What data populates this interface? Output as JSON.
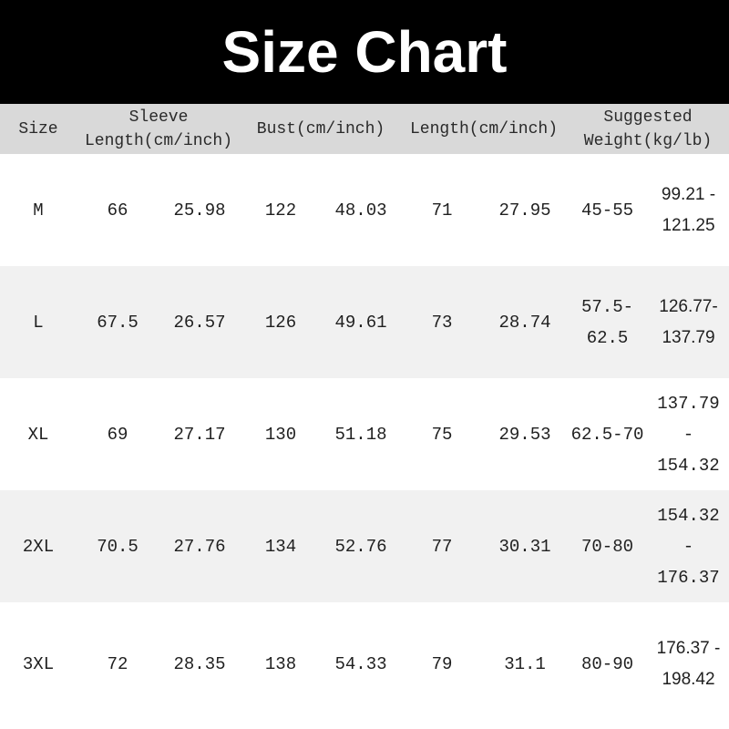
{
  "title": "Size Chart",
  "colors": {
    "banner_bg": "#000000",
    "banner_text": "#ffffff",
    "header_bg": "#d9d9d9",
    "shaded_row_bg": "#f1f1f1",
    "row_bg": "#ffffff",
    "text": "#1f1f1f"
  },
  "chart_data": {
    "type": "table",
    "title": "Size Chart",
    "columns": [
      "Size",
      "Sleeve Length (cm)",
      "Sleeve Length (inch)",
      "Bust (cm)",
      "Bust (inch)",
      "Length (cm)",
      "Length (inch)",
      "Suggested Weight (kg)",
      "Suggested Weight (lb)"
    ],
    "rows": [
      [
        "M",
        "66",
        "25.98",
        "122",
        "48.03",
        "71",
        "27.95",
        "45-55",
        "99.21 - 121.25"
      ],
      [
        "L",
        "67.5",
        "26.57",
        "126",
        "49.61",
        "73",
        "28.74",
        "57.5-62.5",
        "126.77-137.79"
      ],
      [
        "XL",
        "69",
        "27.17",
        "130",
        "51.18",
        "75",
        "29.53",
        "62.5-70",
        "137.79 - 154.32"
      ],
      [
        "2XL",
        "70.5",
        "27.76",
        "134",
        "52.76",
        "77",
        "30.31",
        "70-80",
        "154.32 - 176.37"
      ],
      [
        "3XL",
        "72",
        "28.35",
        "138",
        "54.33",
        "79",
        "31.1",
        "80-90",
        "176.37 - 198.42"
      ]
    ]
  },
  "table": {
    "header_groups": [
      {
        "id": "size",
        "span": 1,
        "label_lines": [
          "Size"
        ]
      },
      {
        "id": "sleeve-length",
        "span": 2,
        "label_lines": [
          "Sleeve",
          "Length(cm/inch)"
        ]
      },
      {
        "id": "bust",
        "span": 2,
        "label_lines": [
          "Bust(cm/inch)"
        ]
      },
      {
        "id": "length",
        "span": 2,
        "label_lines": [
          "Length(cm/inch)"
        ]
      },
      {
        "id": "suggested-weight",
        "span": 2,
        "label_lines": [
          "Suggested",
          "Weight(kg/lb)"
        ]
      }
    ],
    "columns": [
      "size",
      "sleeve-cm",
      "sleeve-inch",
      "bust-cm",
      "bust-inch",
      "length-cm",
      "length-inch",
      "weight-kg",
      "weight-lb"
    ],
    "rows": [
      [
        "M",
        "66",
        "25.98",
        "122",
        "48.03",
        "71",
        "27.95",
        "45-55",
        {
          "lines": [
            "99.21 -",
            "121.25"
          ],
          "alt_style": true
        }
      ],
      [
        "L",
        "67.5",
        "26.57",
        "126",
        "49.61",
        "73",
        "28.74",
        {
          "lines": [
            "57.5-",
            "62.5"
          ]
        },
        {
          "lines": [
            "126.77-",
            "137.79"
          ],
          "alt_style": true
        }
      ],
      [
        "XL",
        "69",
        "27.17",
        "130",
        "51.18",
        "75",
        "29.53",
        "62.5-70",
        {
          "lines": [
            "137.79",
            "-",
            "154.32"
          ]
        }
      ],
      [
        "2XL",
        "70.5",
        "27.76",
        "134",
        "52.76",
        "77",
        "30.31",
        "70-80",
        {
          "lines": [
            "154.32",
            "-",
            "176.37"
          ]
        }
      ],
      [
        "3XL",
        "72",
        "28.35",
        "138",
        "54.33",
        "79",
        "31.1",
        "80-90",
        {
          "lines": [
            "176.37 -",
            "198.42"
          ],
          "alt_style": true
        }
      ]
    ]
  }
}
